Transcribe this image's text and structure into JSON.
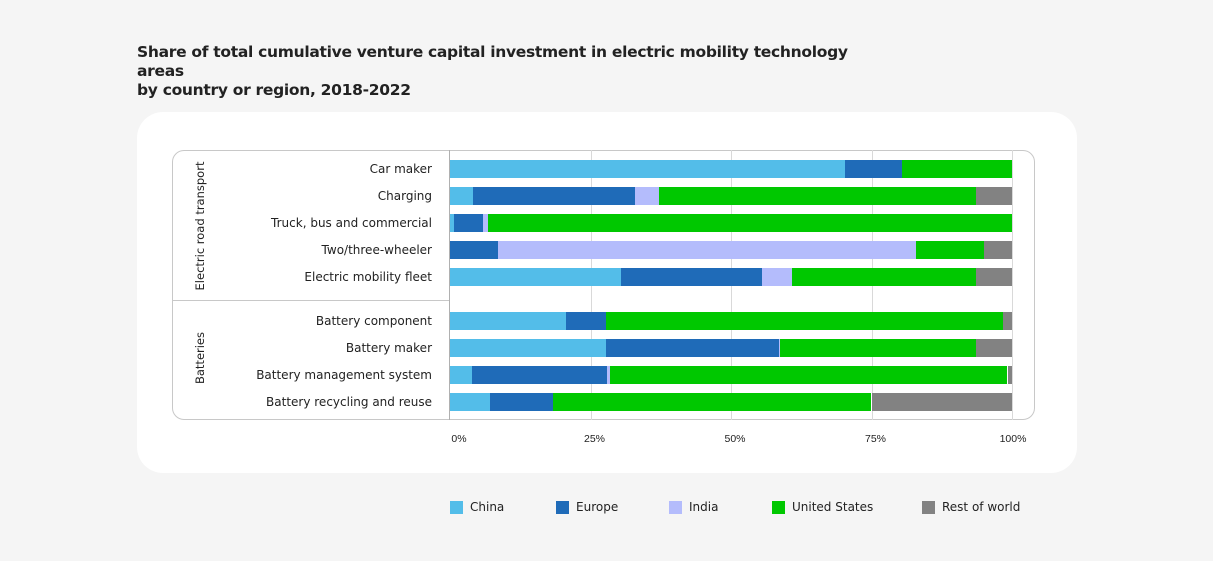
{
  "chart_data": {
    "type": "bar",
    "orientation": "horizontal",
    "stacked": true,
    "title": "Share of total cumulative venture capital investment in electric mobility technology areas by country or region, 2018-2022",
    "title_lines": [
      "Share of total cumulative venture capital investment in electric mobility technology areas",
      "by country or region, 2018-2022"
    ],
    "xlabel": "",
    "ylabel": "",
    "xlim": [
      0,
      100
    ],
    "x_ticks": [
      0,
      25,
      50,
      75,
      100
    ],
    "x_tick_labels": [
      "0%",
      "25%",
      "50%",
      "75%",
      "100%"
    ],
    "grid": true,
    "legend_position": "bottom",
    "groups": [
      {
        "name": "Electric road transport",
        "categories": [
          "Car maker",
          "Charging",
          "Truck, bus and commercial",
          "Two/three-wheeler",
          "Electric mobility fleet"
        ]
      },
      {
        "name": "Batteries",
        "categories": [
          "Battery component",
          "Battery maker",
          "Battery management system",
          "Battery recycling and reuse"
        ]
      }
    ],
    "categories": [
      "Car maker",
      "Charging",
      "Truck, bus and commercial",
      "Two/three-wheeler",
      "Electric mobility fleet",
      "Battery component",
      "Battery maker",
      "Battery management system",
      "Battery recycling and reuse"
    ],
    "series": [
      {
        "name": "China",
        "color": "#53bde9",
        "values": [
          70.3,
          4.1,
          0.7,
          0,
          30.4,
          20.6,
          27.8,
          3.9,
          7.1
        ]
      },
      {
        "name": "Europe",
        "color": "#1f6bb8",
        "values": [
          10.1,
          28.8,
          5.2,
          8.5,
          25.1,
          7.2,
          30.7,
          24.1,
          11.3
        ]
      },
      {
        "name": "India",
        "color": "#b4bcfc",
        "values": [
          0,
          4.3,
          0.9,
          74.5,
          5.4,
          0,
          0.3,
          0.5,
          0
        ]
      },
      {
        "name": "United States",
        "color": "#00c800",
        "values": [
          19.6,
          56.4,
          93.2,
          12.0,
          32.7,
          70.6,
          34.8,
          70.7,
          56.6
        ]
      },
      {
        "name": "Rest of world",
        "color": "#828282",
        "values": [
          0,
          6.4,
          0,
          5.0,
          6.4,
          1.6,
          6.4,
          0.8,
          25.0
        ]
      }
    ]
  }
}
